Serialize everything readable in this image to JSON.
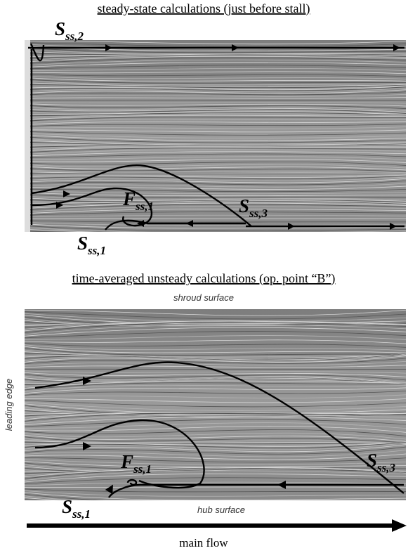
{
  "panel_top": {
    "title": "steady-state calculations (just before stall)",
    "labels": [
      {
        "main": "S",
        "sub": "ss,2"
      },
      {
        "main": "F",
        "sub": "ss,1"
      },
      {
        "main": "S",
        "sub": "ss,3"
      },
      {
        "main": "S",
        "sub": "ss,1"
      }
    ]
  },
  "panel_bottom": {
    "title": "time-averaged unsteady calculations (op. point “B”)",
    "top_edge": "shroud surface",
    "left_edge": "leading edge",
    "bottom_edge": "hub surface",
    "labels": [
      {
        "main": "F",
        "sub": "ss,1"
      },
      {
        "main": "S",
        "sub": "ss,3"
      },
      {
        "main": "S",
        "sub": "ss,1"
      }
    ]
  },
  "footer": {
    "arrow_label": "main flow"
  }
}
